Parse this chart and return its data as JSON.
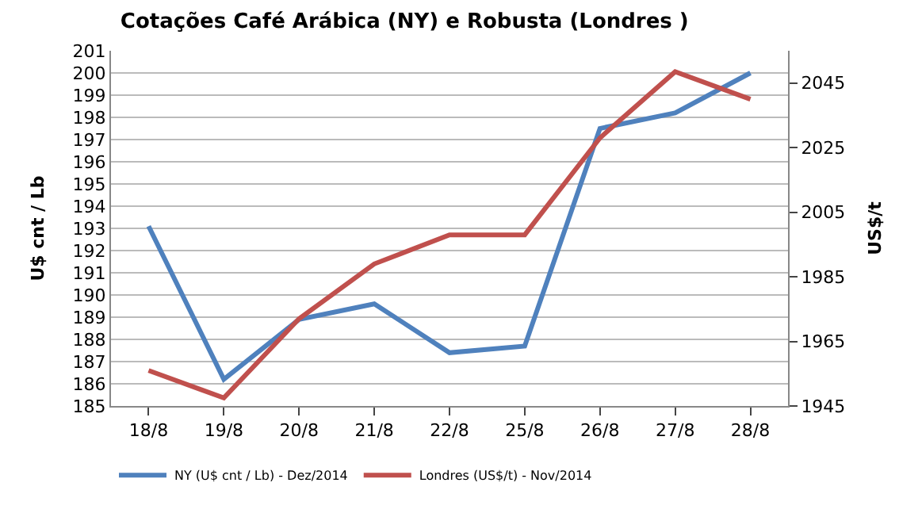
{
  "chart_data": {
    "type": "line",
    "title": "Cotações Café Arábica (NY) e Robusta (Londres )",
    "ylabel": "U$ cnt / Lb",
    "y2label": "US$/t",
    "categories": [
      "18/8",
      "19/8",
      "20/8",
      "21/8",
      "22/8",
      "25/8",
      "26/8",
      "27/8",
      "28/8"
    ],
    "series": [
      {
        "name": "NY (U$ cnt / Lb) - Dez/2014",
        "color": "#4f81bd",
        "values": [
          193.1,
          186.2,
          188.9,
          189.6,
          187.4,
          187.7,
          197.5,
          198.2,
          200.0
        ]
      },
      {
        "name": "Londres (US$/t) - Nov/2014",
        "color": "#c0504d",
        "axis": "y2",
        "values": [
          1956,
          1947.5,
          1972,
          1989,
          1998,
          1998,
          2028,
          2048.5,
          2040
        ]
      }
    ],
    "ylim": [
      185,
      201
    ],
    "yticks": [
      185,
      186,
      187,
      188,
      189,
      190,
      191,
      192,
      193,
      194,
      195,
      196,
      197,
      198,
      199,
      200,
      201
    ],
    "y2lim": [
      1945,
      2055
    ],
    "y2ticks": [
      1945,
      1965,
      1985,
      2005,
      2025,
      2045
    ],
    "grid": "y",
    "legend": "bottom",
    "marker": "none",
    "line_style": "solid"
  }
}
